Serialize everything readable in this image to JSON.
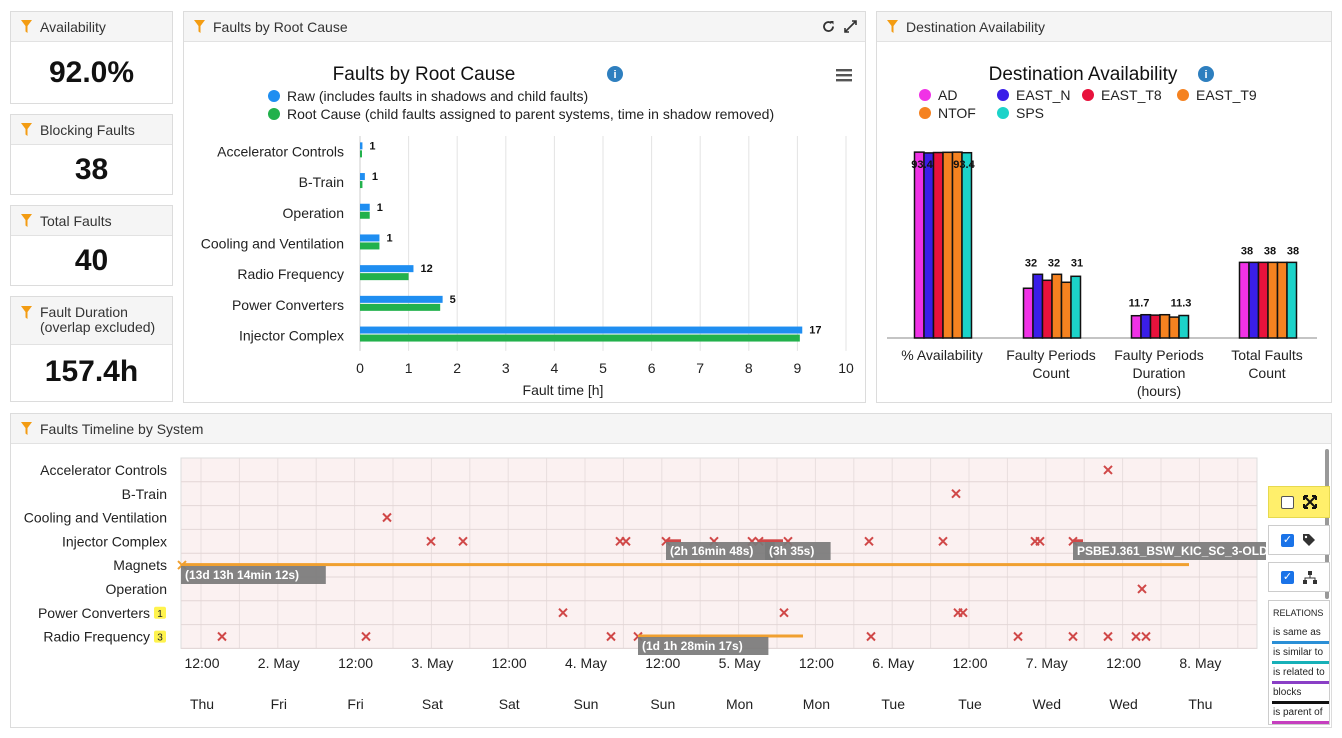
{
  "kpis": [
    {
      "title": "Availability",
      "subtitle": "",
      "value": "92.0%"
    },
    {
      "title": "Blocking Faults",
      "subtitle": "",
      "value": "38"
    },
    {
      "title": "Total Faults",
      "subtitle": "",
      "value": "40"
    },
    {
      "title": "Fault Duration",
      "subtitle": "(overlap excluded)",
      "value": "157.4h"
    }
  ],
  "faults_panel": {
    "title": "Faults by Root Cause",
    "chart_title": "Faults by Root Cause",
    "info_icon": "info-icon",
    "menu_icon": "hamburger-icon",
    "refresh_icon": "refresh-icon",
    "expand_icon": "expand-icon"
  },
  "dest_panel": {
    "title": "Destination Availability",
    "chart_title": "Destination Availability",
    "info_icon": "info-icon"
  },
  "timeline_panel": {
    "title": "Faults Timeline by System",
    "rows": [
      "Accelerator Controls",
      "B-Train",
      "Cooling and Ventilation",
      "Injector Complex",
      "Magnets",
      "Operation",
      "Power Converters",
      "Radio Frequency"
    ],
    "row_badges": {
      "Power Converters": "1",
      "Radio Frequency": "3"
    },
    "time_labels": [
      "12:00",
      "2. May",
      "12:00",
      "3. May",
      "12:00",
      "4. May",
      "12:00",
      "5. May",
      "12:00",
      "6. May",
      "12:00",
      "7. May",
      "12:00",
      "8. May"
    ],
    "day_labels": [
      "Thu",
      "Fri",
      "Fri",
      "Sat",
      "Sat",
      "Sun",
      "Sun",
      "Mon",
      "Mon",
      "Tue",
      "Tue",
      "Wed",
      "Wed",
      "Thu"
    ],
    "tooltips": [
      "(2h 16min 48s)",
      "(3h 35s)",
      "PSBEJ.361_BSW_KIC_SC_3-OLD",
      "(13d 13h 14min 12s)",
      "(1d 1h 28min 17s)"
    ],
    "relations_title": "RELATIONS",
    "relations": [
      {
        "label": "is same as",
        "color": "#2b8fd6"
      },
      {
        "label": "is similar to",
        "color": "#17b0b8"
      },
      {
        "label": "is related to",
        "color": "#8a3fc6"
      },
      {
        "label": "blocks",
        "color": "#111111"
      },
      {
        "label": "is parent of",
        "color": "#c63fbf"
      }
    ],
    "controls": {
      "checkbox1": false,
      "checkbox2": true,
      "checkbox3": true
    }
  },
  "chart_data": [
    {
      "type": "bar",
      "title": "Faults by Root Cause",
      "xlabel": "Fault time [h]",
      "ylabel": "",
      "xlim": [
        0,
        10
      ],
      "ticks": [
        "0",
        "1",
        "2",
        "3",
        "4",
        "5",
        "6",
        "7",
        "8",
        "9",
        "10"
      ],
      "categories": [
        "Accelerator Controls",
        "B-Train",
        "Operation",
        "Cooling and Ventilation",
        "Radio Frequency",
        "Power Converters",
        "Injector Complex"
      ],
      "data_labels": [
        "1",
        "1",
        "1",
        "1",
        "12",
        "5",
        "17"
      ],
      "series": [
        {
          "name": "Raw (includes faults in shadows and child faults)",
          "color": "#1f8ef1",
          "values": [
            0.05,
            0.1,
            0.2,
            0.4,
            1.1,
            1.7,
            9.1
          ]
        },
        {
          "name": "Root Cause (child faults assigned to parent systems, time in shadow removed)",
          "color": "#22b14c",
          "values": [
            0.02,
            0.05,
            0.2,
            0.4,
            1.0,
            1.65,
            9.05
          ]
        }
      ],
      "legend": "top"
    },
    {
      "type": "bar",
      "title": "Destination Availability",
      "categories": [
        "% Availability",
        "Faulty Periods Count",
        "Faulty Periods Duration (hours)",
        "Total Faults Count"
      ],
      "category_lines": [
        [
          "% Availability"
        ],
        [
          "Faulty Periods",
          "Count"
        ],
        [
          "Faulty Periods",
          "Duration",
          "(hours)"
        ],
        [
          "Total Faults",
          "Count"
        ]
      ],
      "series": [
        {
          "name": "AD",
          "color": "#f032e6",
          "values": [
            93.4,
            25,
            11.2,
            38
          ]
        },
        {
          "name": "EAST_N",
          "color": "#3a1ee8",
          "values": [
            93.0,
            32,
            11.7,
            38
          ]
        },
        {
          "name": "EAST_T8",
          "color": "#e8123c",
          "values": [
            93.2,
            29,
            11.5,
            38
          ]
        },
        {
          "name": "EAST_T9",
          "color": "#f58220",
          "values": [
            93.3,
            32,
            11.7,
            38
          ]
        },
        {
          "name": "NTOF",
          "color": "#f58220",
          "values": [
            93.4,
            28,
            10.5,
            38
          ]
        },
        {
          "name": "SPS",
          "color": "#1cd3c9",
          "values": [
            93.1,
            31,
            11.3,
            38
          ]
        }
      ],
      "data_labels": [
        [
          "93.4",
          "93.4"
        ],
        [
          "32",
          "32",
          "31"
        ],
        [
          "11.7",
          "11.3"
        ],
        [
          "38",
          "38",
          "38"
        ]
      ],
      "legend": "top"
    }
  ]
}
